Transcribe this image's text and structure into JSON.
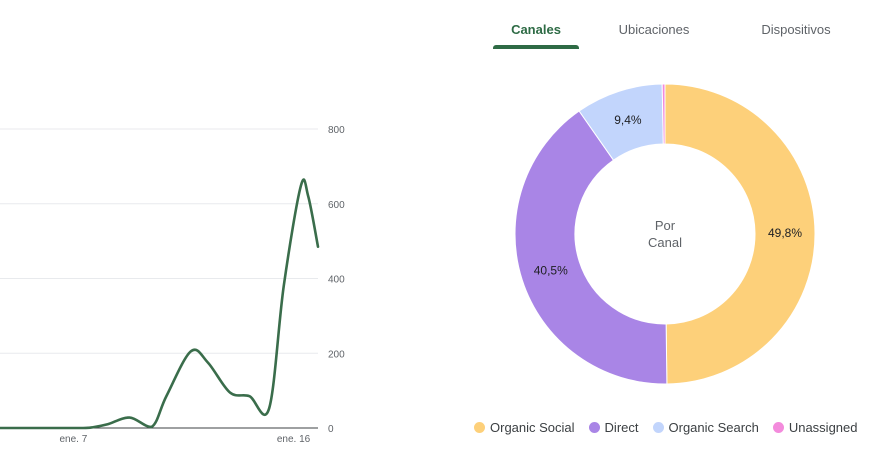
{
  "tabs": [
    {
      "label": "Canales",
      "active": true
    },
    {
      "label": "Ubicaciones",
      "active": false
    },
    {
      "label": "Dispositivos",
      "active": false
    }
  ],
  "colors": {
    "accent": "#2e6b45",
    "line": "#3a6d4b",
    "grid": "#e8eaed",
    "organic_social": "#fdd07a",
    "direct": "#a985e6",
    "organic_search": "#c2d5fc",
    "unassigned": "#f38bdc"
  },
  "chart_data": [
    {
      "type": "line",
      "title": "",
      "xlabel": "",
      "ylabel": "",
      "x_tick_labels": [
        {
          "label": "ene. 7",
          "x": 7
        },
        {
          "label": "ene. 16",
          "x": 16
        }
      ],
      "y_ticks": [
        0,
        200,
        400,
        600,
        800
      ],
      "ylim": [
        0,
        800
      ],
      "xlim": [
        4,
        17
      ],
      "grid": true,
      "series": [
        {
          "x": [
            4,
            6.2,
            7.4,
            7.8,
            8.4,
            9.3,
            10.2,
            10.8,
            11.8,
            12.5,
            13.4,
            14.2,
            15.0,
            15.6,
            16.3,
            16.6,
            17.0
          ],
          "y": [
            0,
            0,
            0,
            2,
            10,
            28,
            3,
            85,
            205,
            175,
            95,
            85,
            52,
            380,
            648,
            620,
            485
          ]
        }
      ]
    },
    {
      "type": "pie",
      "title": "",
      "center_label": [
        "Por",
        "Canal"
      ],
      "legend_position": "bottom",
      "slices": [
        {
          "name": "Organic Social",
          "value": 49.8,
          "label": "49,8%",
          "color_key": "organic_social"
        },
        {
          "name": "Direct",
          "value": 40.5,
          "label": "40,5%",
          "color_key": "direct"
        },
        {
          "name": "Organic Search",
          "value": 9.4,
          "label": "9,4%",
          "color_key": "organic_search"
        },
        {
          "name": "Unassigned",
          "value": 0.3,
          "label": "",
          "color_key": "unassigned"
        }
      ]
    }
  ]
}
